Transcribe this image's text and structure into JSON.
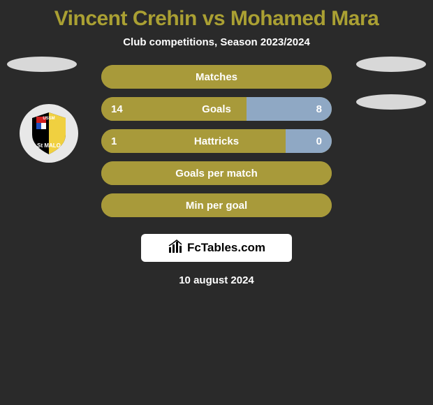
{
  "header": {
    "player1": "Vincent Crehin",
    "vs": "vs",
    "player2": "Mohamed Mara",
    "title_color": "#aaa033",
    "subtitle": "Club competitions, Season 2023/2024"
  },
  "clubs": {
    "left_ellipse_color": "#d8d8d8",
    "right_ellipse_color": "#d8d8d8",
    "right_ellipse2_color": "#d8d8d8"
  },
  "stats": [
    {
      "label": "Matches",
      "left_val": "",
      "right_val": "",
      "base_color": "#a89a3a",
      "left_fill_color": "#a89a3a",
      "right_fill_color": "#a89a3a",
      "left_fill_pct": 50,
      "right_fill_pct": 50
    },
    {
      "label": "Goals",
      "left_val": "14",
      "right_val": "8",
      "base_color": "#a89a3a",
      "left_fill_color": "#a89a3a",
      "right_fill_color": "#8fa8c4",
      "left_fill_pct": 63,
      "right_fill_pct": 37
    },
    {
      "label": "Hattricks",
      "left_val": "1",
      "right_val": "0",
      "base_color": "#a89a3a",
      "left_fill_color": "#a89a3a",
      "right_fill_color": "#8fa8c4",
      "left_fill_pct": 80,
      "right_fill_pct": 20
    },
    {
      "label": "Goals per match",
      "left_val": "",
      "right_val": "",
      "base_color": "#a89a3a",
      "left_fill_color": "#a89a3a",
      "right_fill_color": "#a89a3a",
      "left_fill_pct": 50,
      "right_fill_pct": 50
    },
    {
      "label": "Min per goal",
      "left_val": "",
      "right_val": "",
      "base_color": "#a89a3a",
      "left_fill_color": "#a89a3a",
      "right_fill_color": "#a89a3a",
      "left_fill_pct": 50,
      "right_fill_pct": 50
    }
  ],
  "watermark": {
    "text": "FcTables.com",
    "icon_name": "bar-chart-icon"
  },
  "footer": {
    "date": "10 august 2024"
  },
  "colors": {
    "background": "#2a2a2a"
  }
}
